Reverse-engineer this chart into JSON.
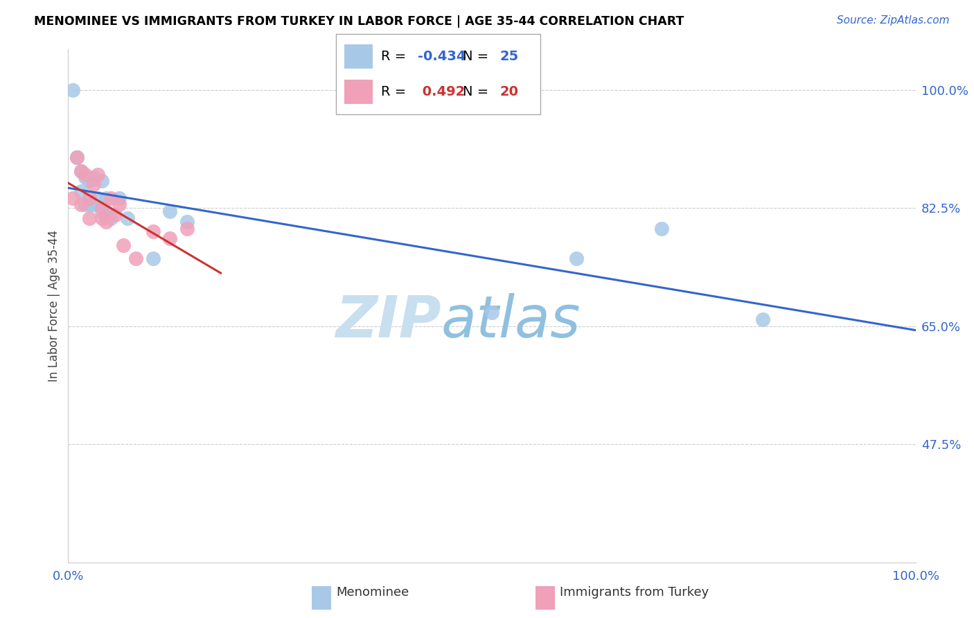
{
  "title": "MENOMINEE VS IMMIGRANTS FROM TURKEY IN LABOR FORCE | AGE 35-44 CORRELATION CHART",
  "source": "Source: ZipAtlas.com",
  "ylabel": "In Labor Force | Age 35-44",
  "r_menominee": -0.434,
  "n_menominee": 25,
  "r_turkey": 0.492,
  "n_turkey": 20,
  "color_menominee": "#a8c8e8",
  "color_turkey": "#f0a0b8",
  "line_color_menominee": "#3366cc",
  "line_color_turkey": "#cc3333",
  "axis_color": "#3366cc",
  "grid_color": "#cccccc",
  "watermark_zip_color": "#c8dff0",
  "watermark_atlas_color": "#90c0e0",
  "menominee_x": [
    0.005,
    0.01,
    0.015,
    0.015,
    0.02,
    0.02,
    0.025,
    0.025,
    0.03,
    0.03,
    0.035,
    0.04,
    0.04,
    0.045,
    0.045,
    0.05,
    0.06,
    0.07,
    0.1,
    0.12,
    0.14,
    0.5,
    0.6,
    0.7,
    0.82
  ],
  "menominee_y": [
    1.0,
    0.9,
    0.88,
    0.85,
    0.87,
    0.83,
    0.865,
    0.83,
    0.87,
    0.83,
    0.84,
    0.865,
    0.82,
    0.84,
    0.82,
    0.81,
    0.84,
    0.81,
    0.75,
    0.82,
    0.805,
    0.67,
    0.75,
    0.795,
    0.66
  ],
  "turkey_x": [
    0.005,
    0.01,
    0.015,
    0.015,
    0.02,
    0.025,
    0.025,
    0.03,
    0.035,
    0.04,
    0.04,
    0.045,
    0.05,
    0.055,
    0.06,
    0.065,
    0.08,
    0.1,
    0.12,
    0.14
  ],
  "turkey_y": [
    0.84,
    0.9,
    0.88,
    0.83,
    0.875,
    0.84,
    0.81,
    0.86,
    0.875,
    0.81,
    0.825,
    0.805,
    0.84,
    0.815,
    0.83,
    0.77,
    0.75,
    0.79,
    0.78,
    0.795
  ],
  "xlim": [
    0.0,
    1.0
  ],
  "ylim": [
    0.3,
    1.06
  ],
  "yticks": [
    1.0,
    0.825,
    0.65,
    0.475
  ],
  "ytick_labels": [
    "100.0%",
    "82.5%",
    "65.0%",
    "47.5%"
  ],
  "xticks": [
    0.0,
    0.25,
    0.5,
    0.75,
    1.0
  ],
  "xtick_labels": [
    "0.0%",
    "",
    "",
    "",
    "100.0%"
  ]
}
